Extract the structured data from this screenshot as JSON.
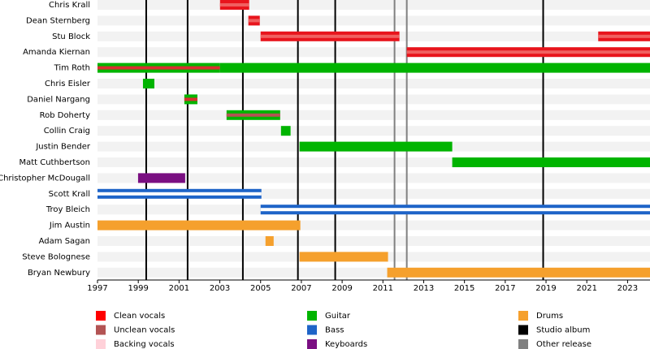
{
  "chart_data": {
    "type": "timeline",
    "xlim": [
      1997,
      2024.1
    ],
    "xticks": [
      1997,
      1999,
      2001,
      2003,
      2005,
      2007,
      2009,
      2011,
      2013,
      2015,
      2017,
      2019,
      2021,
      2023
    ],
    "members": [
      {
        "name": "Chris Krall",
        "periods": [
          {
            "start": 2003.01,
            "end": 2004.44,
            "color": "#e8141c",
            "stripe": "#f06060"
          }
        ]
      },
      {
        "name": "Dean Sternberg",
        "periods": [
          {
            "start": 2004.4,
            "end": 2004.96,
            "color": "#e8141c",
            "stripe": "#f06060"
          }
        ]
      },
      {
        "name": "Stu Block",
        "periods": [
          {
            "start": 2005.0,
            "end": 2011.81,
            "color": "#e8141c",
            "stripe": "#f06060"
          },
          {
            "start": 2021.56,
            "end": 2024.1,
            "color": "#e8141c",
            "stripe": "#f06060"
          }
        ]
      },
      {
        "name": "Amanda Kiernan",
        "periods": [
          {
            "start": 2012.17,
            "end": 2024.1,
            "color": "#e8141c",
            "stripe": "#f06060"
          }
        ]
      },
      {
        "name": "Tim Roth",
        "periods": [
          {
            "start": 1997,
            "end": 2003.01,
            "color": "#00b400",
            "stripe": "#d93030"
          },
          {
            "start": 2003.01,
            "end": 2024.1,
            "color": "#00b400"
          }
        ]
      },
      {
        "name": "Chris Eisler",
        "periods": [
          {
            "start": 1999.23,
            "end": 1999.79,
            "color": "#00b400"
          }
        ]
      },
      {
        "name": "Daniel Nargang",
        "periods": [
          {
            "start": 2001.26,
            "end": 2001.9,
            "color": "#00b400",
            "stripe": "#d93030"
          }
        ]
      },
      {
        "name": "Rob Doherty",
        "periods": [
          {
            "start": 2003.33,
            "end": 2005.96,
            "color": "#00b400",
            "stripe": "#b35454"
          }
        ]
      },
      {
        "name": "Collin Craig",
        "periods": [
          {
            "start": 2006.0,
            "end": 2006.47,
            "color": "#00b400"
          }
        ]
      },
      {
        "name": "Justin Bender",
        "periods": [
          {
            "start": 2006.91,
            "end": 2014.4,
            "color": "#00b400"
          }
        ]
      },
      {
        "name": "Matt Cuthbertson",
        "periods": [
          {
            "start": 2014.4,
            "end": 2024.1,
            "color": "#00b400"
          }
        ]
      },
      {
        "name": "Christopher McDougall",
        "periods": [
          {
            "start": 1998.99,
            "end": 2001.3,
            "color": "#7a0f82"
          }
        ]
      },
      {
        "name": "Scott Krall",
        "periods": [
          {
            "start": 1997,
            "end": 2005.04,
            "color": "#1e64c8",
            "stripe": "#ffffff"
          }
        ]
      },
      {
        "name": "Troy Bleich",
        "periods": [
          {
            "start": 2005.0,
            "end": 2024.1,
            "color": "#1e64c8",
            "stripe": "#ffffff"
          }
        ]
      },
      {
        "name": "Jim Austin",
        "periods": [
          {
            "start": 1997,
            "end": 2006.95,
            "color": "#f5a02d"
          }
        ]
      },
      {
        "name": "Adam Sagan",
        "periods": [
          {
            "start": 2005.24,
            "end": 2005.64,
            "color": "#f5a02d"
          }
        ]
      },
      {
        "name": "Steve Bolognese",
        "periods": [
          {
            "start": 2006.91,
            "end": 2011.25,
            "color": "#f5a02d"
          }
        ]
      },
      {
        "name": "Bryan Newbury",
        "periods": [
          {
            "start": 2011.21,
            "end": 2024.1,
            "color": "#f5a02d"
          }
        ]
      }
    ],
    "studio_albums": [
      1999.39,
      2001.42,
      2004.13,
      2006.83,
      2008.66,
      2018.86
    ],
    "other_releases": [
      2011.57,
      2012.17
    ],
    "studio_album_color": "#000000",
    "other_release_color": "#808080",
    "legend": [
      {
        "name": "Clean vocals",
        "color": "#ff0000"
      },
      {
        "name": "Unclean vocals",
        "color": "#b35454"
      },
      {
        "name": "Backing vocals",
        "color": "#ffd1d9"
      },
      {
        "name": "Guitar",
        "color": "#00b400"
      },
      {
        "name": "Bass",
        "color": "#1e64c8"
      },
      {
        "name": "Keyboards",
        "color": "#7a0f82"
      },
      {
        "name": "Drums",
        "color": "#f5a02d"
      },
      {
        "name": "Studio album",
        "color": "#000000"
      },
      {
        "name": "Other release",
        "color": "#808080"
      }
    ]
  }
}
